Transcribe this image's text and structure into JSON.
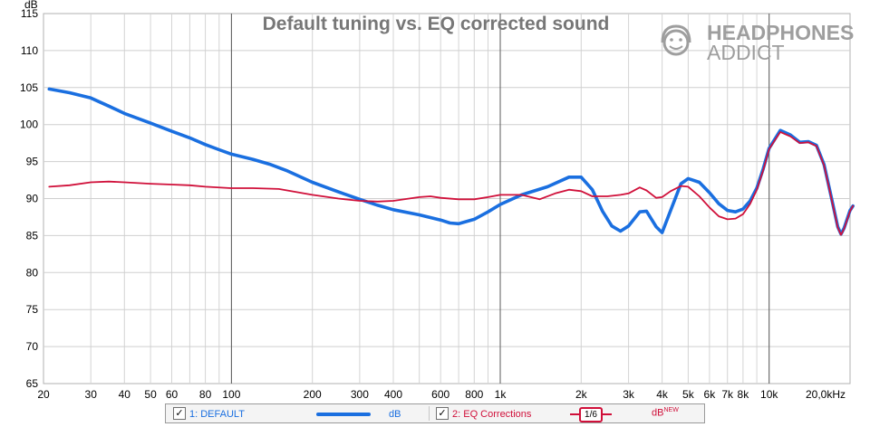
{
  "chart_data": {
    "type": "line",
    "title": "Default tuning vs. EQ corrected sound",
    "ylabel": "dB",
    "xscale": "log",
    "xlim": [
      20,
      20000
    ],
    "ylim": [
      65,
      115
    ],
    "yticks": [
      65,
      70,
      75,
      80,
      85,
      90,
      95,
      100,
      105,
      110,
      115
    ],
    "xticks": [
      {
        "v": 20,
        "label": "20"
      },
      {
        "v": 30,
        "label": "30"
      },
      {
        "v": 40,
        "label": "40"
      },
      {
        "v": 50,
        "label": "50"
      },
      {
        "v": 60,
        "label": "60"
      },
      {
        "v": 80,
        "label": "80"
      },
      {
        "v": 100,
        "label": "100"
      },
      {
        "v": 200,
        "label": "200"
      },
      {
        "v": 300,
        "label": "300"
      },
      {
        "v": 400,
        "label": "400"
      },
      {
        "v": 600,
        "label": "600"
      },
      {
        "v": 800,
        "label": "800"
      },
      {
        "v": 1000,
        "label": "1k"
      },
      {
        "v": 2000,
        "label": "2k"
      },
      {
        "v": 3000,
        "label": "3k"
      },
      {
        "v": 4000,
        "label": "4k"
      },
      {
        "v": 5000,
        "label": "5k"
      },
      {
        "v": 6000,
        "label": "6k"
      },
      {
        "v": 7000,
        "label": "7k"
      },
      {
        "v": 8000,
        "label": "8k"
      },
      {
        "v": 10000,
        "label": "10k"
      },
      {
        "v": 20000,
        "label": "20,0kHz"
      }
    ],
    "grid": true,
    "series": [
      {
        "name": "1: DEFAULT",
        "color": "#1a6fe0",
        "points": [
          [
            21,
            104.8
          ],
          [
            25,
            104.3
          ],
          [
            30,
            103.6
          ],
          [
            35,
            102.5
          ],
          [
            40,
            101.5
          ],
          [
            50,
            100.2
          ],
          [
            60,
            99.1
          ],
          [
            70,
            98.2
          ],
          [
            80,
            97.3
          ],
          [
            90,
            96.6
          ],
          [
            100,
            96.0
          ],
          [
            120,
            95.3
          ],
          [
            140,
            94.6
          ],
          [
            160,
            93.8
          ],
          [
            200,
            92.2
          ],
          [
            250,
            90.9
          ],
          [
            300,
            89.9
          ],
          [
            350,
            89.1
          ],
          [
            400,
            88.5
          ],
          [
            500,
            87.8
          ],
          [
            600,
            87.1
          ],
          [
            650,
            86.7
          ],
          [
            700,
            86.6
          ],
          [
            800,
            87.2
          ],
          [
            900,
            88.2
          ],
          [
            1000,
            89.2
          ],
          [
            1200,
            90.5
          ],
          [
            1500,
            91.6
          ],
          [
            1800,
            92.9
          ],
          [
            2000,
            92.9
          ],
          [
            2200,
            91.2
          ],
          [
            2400,
            88.3
          ],
          [
            2600,
            86.3
          ],
          [
            2800,
            85.6
          ],
          [
            3000,
            86.3
          ],
          [
            3300,
            88.2
          ],
          [
            3500,
            88.3
          ],
          [
            3800,
            86.2
          ],
          [
            4000,
            85.4
          ],
          [
            4300,
            88.4
          ],
          [
            4700,
            92.0
          ],
          [
            5000,
            92.7
          ],
          [
            5500,
            92.2
          ],
          [
            6000,
            90.8
          ],
          [
            6500,
            89.3
          ],
          [
            7000,
            88.4
          ],
          [
            7500,
            88.2
          ],
          [
            8000,
            88.6
          ],
          [
            8500,
            89.7
          ],
          [
            9000,
            91.4
          ],
          [
            9500,
            94.0
          ],
          [
            10000,
            96.8
          ],
          [
            11000,
            99.2
          ],
          [
            12000,
            98.6
          ],
          [
            13000,
            97.6
          ],
          [
            14000,
            97.7
          ],
          [
            15000,
            97.2
          ],
          [
            16000,
            94.6
          ],
          [
            17000,
            90.3
          ],
          [
            18000,
            86.2
          ],
          [
            18500,
            85.2
          ],
          [
            19000,
            86.0
          ],
          [
            20000,
            88.4
          ],
          [
            20500,
            89.0
          ]
        ]
      },
      {
        "name": "2: EQ Corrections",
        "color": "#d0103a",
        "points": [
          [
            21,
            91.6
          ],
          [
            25,
            91.8
          ],
          [
            30,
            92.2
          ],
          [
            35,
            92.3
          ],
          [
            40,
            92.2
          ],
          [
            50,
            92.0
          ],
          [
            60,
            91.9
          ],
          [
            70,
            91.8
          ],
          [
            80,
            91.6
          ],
          [
            100,
            91.4
          ],
          [
            120,
            91.4
          ],
          [
            150,
            91.3
          ],
          [
            200,
            90.5
          ],
          [
            250,
            90.0
          ],
          [
            300,
            89.7
          ],
          [
            350,
            89.6
          ],
          [
            400,
            89.7
          ],
          [
            500,
            90.2
          ],
          [
            550,
            90.3
          ],
          [
            600,
            90.1
          ],
          [
            700,
            89.9
          ],
          [
            800,
            89.9
          ],
          [
            900,
            90.2
          ],
          [
            1000,
            90.5
          ],
          [
            1200,
            90.5
          ],
          [
            1400,
            89.9
          ],
          [
            1600,
            90.7
          ],
          [
            1800,
            91.2
          ],
          [
            2000,
            91.0
          ],
          [
            2200,
            90.3
          ],
          [
            2500,
            90.3
          ],
          [
            2800,
            90.5
          ],
          [
            3000,
            90.7
          ],
          [
            3300,
            91.5
          ],
          [
            3500,
            91.1
          ],
          [
            3800,
            90.1
          ],
          [
            4000,
            90.2
          ],
          [
            4300,
            91.0
          ],
          [
            4700,
            91.7
          ],
          [
            5000,
            91.6
          ],
          [
            5500,
            90.3
          ],
          [
            6000,
            88.8
          ],
          [
            6500,
            87.6
          ],
          [
            7000,
            87.2
          ],
          [
            7500,
            87.3
          ],
          [
            8000,
            87.9
          ],
          [
            8500,
            89.3
          ],
          [
            9000,
            91.2
          ],
          [
            9500,
            93.8
          ],
          [
            10000,
            96.7
          ],
          [
            11000,
            99.0
          ],
          [
            12000,
            98.4
          ],
          [
            13000,
            97.5
          ],
          [
            14000,
            97.6
          ],
          [
            15000,
            97.1
          ],
          [
            16000,
            94.5
          ],
          [
            17000,
            90.2
          ],
          [
            18000,
            86.1
          ],
          [
            18500,
            85.1
          ],
          [
            19000,
            85.9
          ],
          [
            20000,
            88.3
          ],
          [
            20500,
            89.0
          ]
        ]
      }
    ]
  },
  "legend": {
    "s1_label": "1: DEFAULT",
    "s1_unit": "dB",
    "s2_label": "2: EQ Corrections",
    "s2_smoothing": "1/6",
    "s2_unit": "dB",
    "s2_unit_sup": "NEW",
    "check": "✓"
  },
  "watermark": {
    "line1": "HEADPHONES",
    "line2": "ADDICT"
  }
}
